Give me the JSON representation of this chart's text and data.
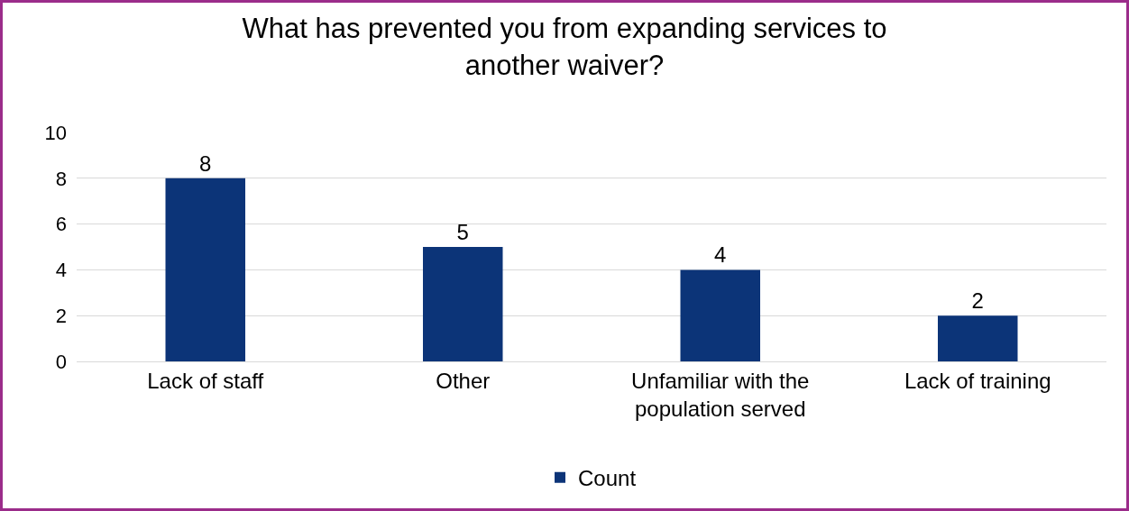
{
  "chart_data": {
    "type": "bar",
    "title": "What has prevented you from expanding services to another waiver?",
    "categories": [
      "Lack of staff",
      "Other",
      "Unfamiliar with the population served",
      "Lack of training"
    ],
    "series": [
      {
        "name": "Count",
        "color": "#0c3478",
        "values": [
          8,
          5,
          4,
          2
        ]
      }
    ],
    "ylim": [
      0,
      10
    ],
    "yticks": [
      0,
      2,
      4,
      6,
      8,
      10
    ],
    "grid": "y",
    "legend": "bottom",
    "data_labels": true
  }
}
